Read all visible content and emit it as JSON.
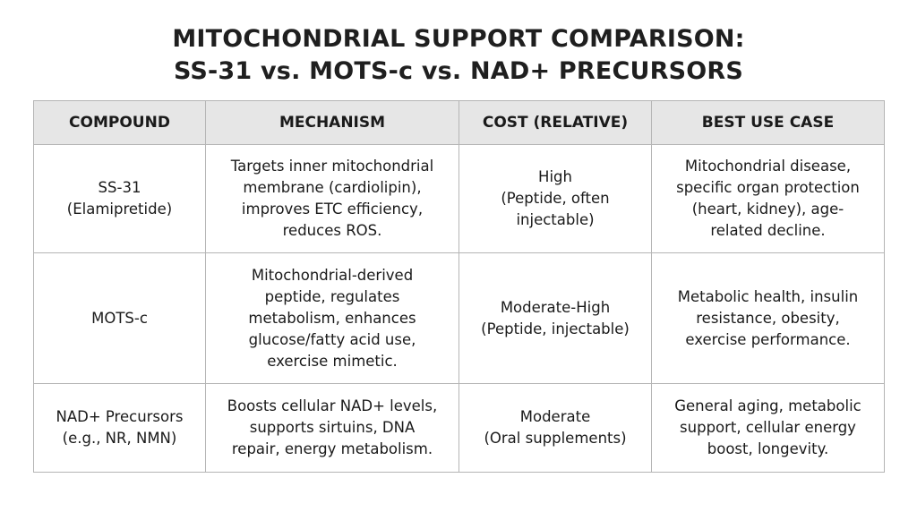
{
  "title": {
    "line1": "MITOCHONDRIAL SUPPORT COMPARISON:",
    "line2": "SS-31 vs. MOTS-c vs. NAD+ PRECURSORS"
  },
  "table": {
    "headers": [
      "COMPOUND",
      "MECHANISM",
      "COST (RELATIVE)",
      "BEST USE CASE"
    ],
    "rows": [
      {
        "compound": [
          "SS-31",
          "(Elamipretide)"
        ],
        "mechanism": [
          "Targets inner mitochondrial",
          "membrane (cardiolipin),",
          "improves ETC efficiency,",
          "reduces ROS."
        ],
        "cost": [
          "High",
          "(Peptide, often",
          "injectable)"
        ],
        "use_case": [
          "Mitochondrial disease,",
          "specific organ protection",
          "(heart, kidney), age-",
          "related decline."
        ]
      },
      {
        "compound": [
          "MOTS-c"
        ],
        "mechanism": [
          "Mitochondrial-derived",
          "peptide, regulates",
          "metabolism, enhances",
          "glucose/fatty acid use,",
          "exercise mimetic."
        ],
        "cost": [
          "Moderate-High",
          "(Peptide, injectable)"
        ],
        "use_case": [
          "Metabolic health, insulin",
          "resistance, obesity,",
          "exercise performance."
        ]
      },
      {
        "compound": [
          "NAD+ Precursors",
          "(e.g., NR, NMN)"
        ],
        "mechanism": [
          "Boosts cellular NAD+ levels,",
          "supports sirtuins, DNA",
          "repair, energy metabolism."
        ],
        "cost": [
          "Moderate",
          "(Oral supplements)"
        ],
        "use_case": [
          "General aging, metabolic",
          "support, cellular energy",
          "boost, longevity."
        ]
      }
    ]
  }
}
